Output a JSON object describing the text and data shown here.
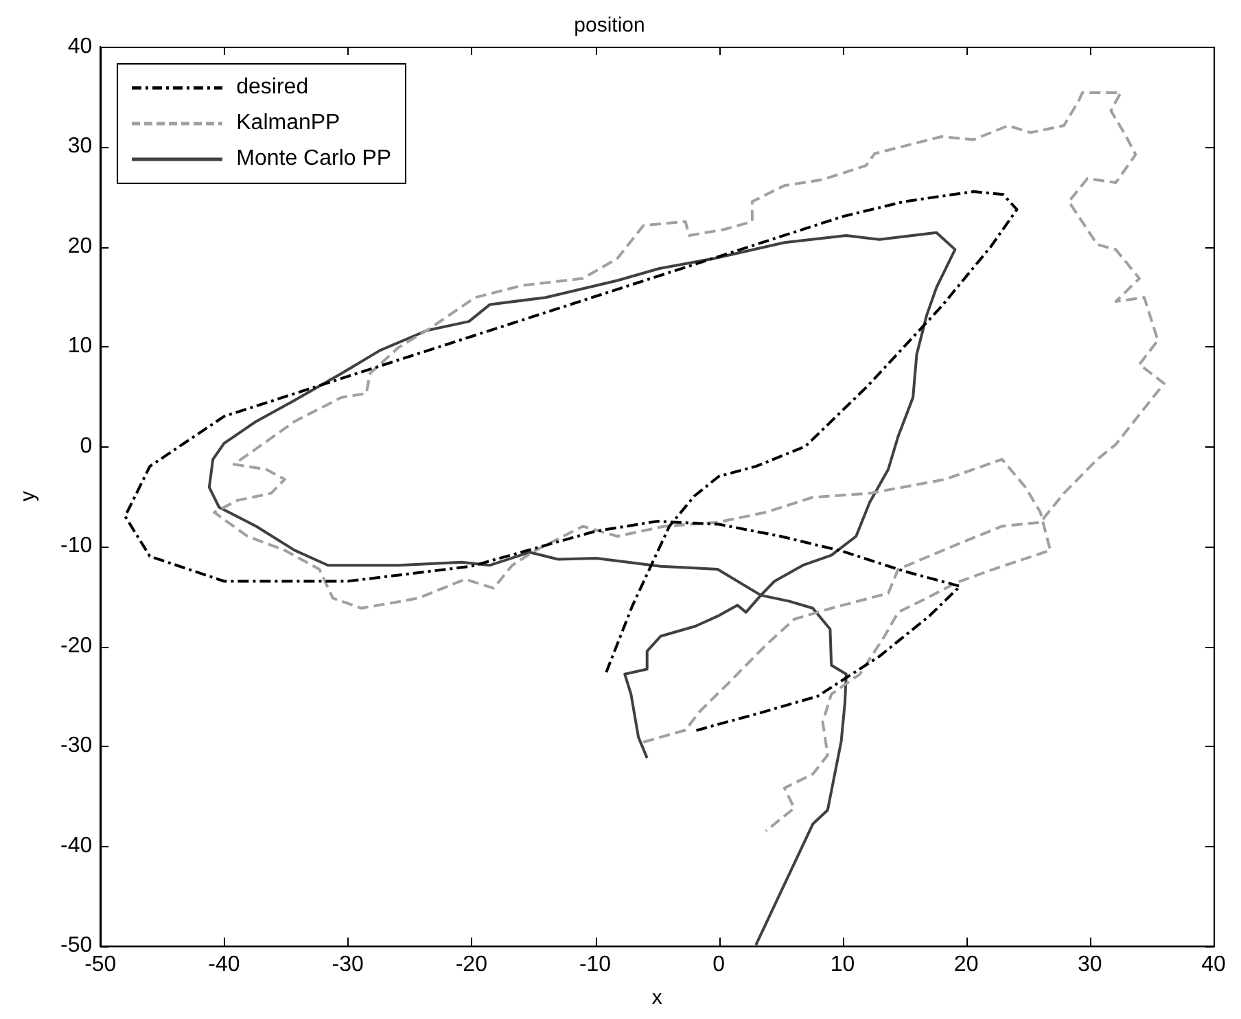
{
  "chart_data": {
    "type": "line",
    "title": "position",
    "xlabel": "x",
    "ylabel": "y",
    "xlim": [
      -50,
      40
    ],
    "xticks": [
      -50,
      -40,
      -30,
      -20,
      -10,
      0,
      10,
      20,
      30,
      40
    ],
    "ylim": [
      -50,
      40
    ],
    "yticks": [
      -50,
      -40,
      -30,
      -20,
      -10,
      0,
      10,
      20,
      30,
      40
    ],
    "grid": false,
    "legend": "top left",
    "marker": "none",
    "series": [
      {
        "name": "desired",
        "color": "#000000",
        "line_style": "dashdot",
        "x": [
          -9.1,
          -7,
          -4,
          -2,
          0,
          3,
          7,
          12,
          18,
          22,
          24.1,
          23,
          20.6,
          15,
          10,
          0,
          -10,
          -20,
          -30,
          -40,
          -46,
          -48,
          -46,
          -40,
          -30,
          -20,
          -10,
          -5,
          0,
          5,
          10,
          15,
          19.5,
          17,
          13,
          8,
          3,
          0,
          -2
        ],
        "values": [
          -22.6,
          -16,
          -8,
          -5,
          -3,
          -2,
          0,
          6,
          14,
          20,
          23.7,
          25.2,
          25.5,
          24.5,
          23,
          19,
          15,
          11,
          7,
          3,
          -2,
          -7,
          -11,
          -13.5,
          -13.5,
          -12,
          -8.5,
          -7.5,
          -7.8,
          -9,
          -10.5,
          -12.5,
          -14,
          -17,
          -21,
          -25,
          -26.8,
          -27.8,
          -28.5
        ]
      },
      {
        "name": "KalmanPP",
        "color": "#a0a0a0",
        "line_style": "dashed",
        "x": [
          -6.1,
          -2.7,
          -1.6,
          0.7,
          3.8,
          6.1,
          9.1,
          13.7,
          14.5,
          19.1,
          22.9,
          26,
          27.9,
          30.6,
          32.1,
          36,
          34,
          35.5,
          34.4,
          32.1,
          34,
          32.1,
          30.6,
          28.3,
          29.8,
          32.1,
          33.7,
          32.9,
          31.7,
          32.5,
          29.4,
          29.1,
          27.9,
          25.2,
          23.4,
          20.6,
          18,
          12.6,
          11.9,
          8.4,
          5.3,
          2.7,
          2.7,
          0.4,
          -2.4,
          -2.7,
          -6.1,
          -8.2,
          -11,
          -15.9,
          -19.7,
          -23.6,
          -25.9,
          -28.2,
          -28.5,
          -30.5,
          -34.3,
          -36.9,
          -39.2,
          -36.6,
          -35.1,
          -36.2,
          -38.9,
          -40.8,
          -38.1,
          -35.1,
          -32.3,
          -31.2,
          -28.9,
          -24.3,
          -20.5,
          -18.2,
          -16.7,
          -14.8,
          -11,
          -8.2,
          -4.4,
          -0.1,
          3.8,
          7.6,
          12.2,
          18.3,
          22.9,
          24.8,
          26,
          26.8,
          22.2,
          19.1,
          16.8,
          14.5,
          13.4,
          11.4,
          9.1,
          8.4,
          8.8,
          7.6,
          5.3,
          6.1,
          3.8
        ],
        "values": [
          -29.6,
          -28.4,
          -26.6,
          -23.8,
          -19.9,
          -17.3,
          -16.2,
          -14.7,
          -12.3,
          -9.9,
          -8,
          -7.6,
          -4.7,
          -1.3,
          0.2,
          6.3,
          8.2,
          10.6,
          14.9,
          14.5,
          16.8,
          19.7,
          20.2,
          24.5,
          26.8,
          26.4,
          29.2,
          31.1,
          33.6,
          35.4,
          35.4,
          34.6,
          32.1,
          31.4,
          32.1,
          30.7,
          31,
          29.3,
          28.1,
          26.7,
          26.1,
          24.5,
          22.5,
          21.7,
          21.1,
          22.5,
          22.1,
          18.8,
          16.8,
          16.1,
          14.9,
          11.6,
          9.9,
          7.3,
          5.3,
          4.9,
          2.5,
          0.2,
          -1.8,
          -2.3,
          -3.3,
          -4.7,
          -5.4,
          -6.6,
          -9,
          -10.4,
          -12.3,
          -15.2,
          -16.2,
          -15.2,
          -13.3,
          -14.2,
          -11.9,
          -10.4,
          -8,
          -9,
          -8,
          -7.6,
          -6.6,
          -5.1,
          -4.7,
          -3.3,
          -1.3,
          -4.1,
          -6.6,
          -10.4,
          -12.3,
          -13.7,
          -15.2,
          -16.6,
          -19,
          -22.8,
          -24.8,
          -27.6,
          -30.9,
          -32.8,
          -34.2,
          -36.2,
          -38.5
        ]
      },
      {
        "name": "Monte Carlo PP",
        "color": "#404040",
        "line_style": "solid",
        "x": [
          3,
          7.6,
          8.8,
          9.9,
          10.2,
          10.3,
          9.1,
          9,
          7.6,
          5.7,
          3.4,
          -0.1,
          -4.7,
          -9.9,
          -13,
          -15.3,
          -18.5,
          -20.8,
          -25.9,
          -31.6,
          -34.3,
          -37.4,
          -40.4,
          -41.2,
          -40.9,
          -40,
          -37.4,
          -34.3,
          -30.5,
          -27.4,
          -23.6,
          -20.2,
          -18.5,
          -14,
          -8.2,
          -4.8,
          -0.4,
          5.3,
          10.3,
          13,
          17.6,
          19.1,
          17.6,
          16.8,
          16,
          15.7,
          14.5,
          13.7,
          12.2,
          11.1,
          9.1,
          6.8,
          4.5,
          3.4,
          2.2,
          1.5,
          -0.1,
          -1.9,
          -4.7,
          -5.8,
          -5.8,
          -7.6,
          -7.1,
          -6.5,
          -5.8
        ],
        "values": [
          -49.9,
          -37.8,
          -36.4,
          -29.5,
          -25.6,
          -22.8,
          -21.9,
          -18.3,
          -16.2,
          -15.5,
          -14.9,
          -12.3,
          -12,
          -11.2,
          -11.3,
          -10.6,
          -11.9,
          -11.6,
          -11.9,
          -11.9,
          -10.4,
          -8,
          -6.1,
          -4.1,
          -1.3,
          0.3,
          2.5,
          4.6,
          7.3,
          9.6,
          11.6,
          12.5,
          14.2,
          14.9,
          16.6,
          17.8,
          18.8,
          20.4,
          21.1,
          20.7,
          21.4,
          19.7,
          15.9,
          13.1,
          9.2,
          4.9,
          1,
          -2.3,
          -5.6,
          -9,
          -10.9,
          -11.9,
          -13.5,
          -14.9,
          -16.6,
          -15.9,
          -17,
          -18,
          -19,
          -20.5,
          -22.3,
          -22.8,
          -24.8,
          -29.1,
          -31.2
        ]
      }
    ]
  }
}
